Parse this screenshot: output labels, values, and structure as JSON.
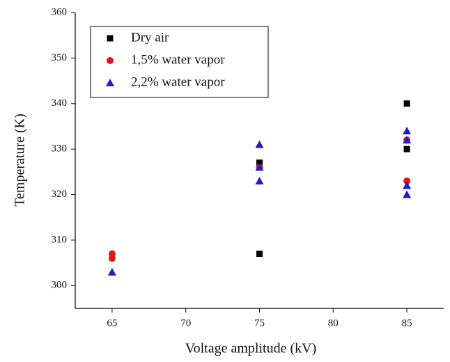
{
  "chart_data": {
    "type": "scatter",
    "x_label": "Voltage amplitude (kV)",
    "y_label": "Temperature (K)",
    "xlim": [
      62.5,
      87.5
    ],
    "xticks": [
      65,
      70,
      75,
      80,
      85
    ],
    "ylim": [
      295,
      360
    ],
    "yticks": [
      300,
      310,
      320,
      330,
      340,
      350,
      360
    ],
    "legend": "top-left",
    "series": [
      {
        "name": "Dry air",
        "color": "#000000",
        "marker": "square",
        "x": [
          75,
          75,
          85,
          85
        ],
        "y": [
          327,
          307,
          340,
          330
        ]
      },
      {
        "name": "1,5% water vapor",
        "color": "#e8141b",
        "marker": "circle",
        "x": [
          65,
          65,
          75,
          85,
          85
        ],
        "y": [
          307,
          306,
          326,
          323,
          332
        ]
      },
      {
        "name": "2,2% water vapor",
        "color": "#1d1dcc",
        "marker": "triangle",
        "x": [
          65,
          75,
          75,
          75,
          85,
          85,
          85,
          85
        ],
        "y": [
          303,
          331,
          326,
          323,
          334,
          332,
          322,
          320
        ]
      }
    ]
  }
}
